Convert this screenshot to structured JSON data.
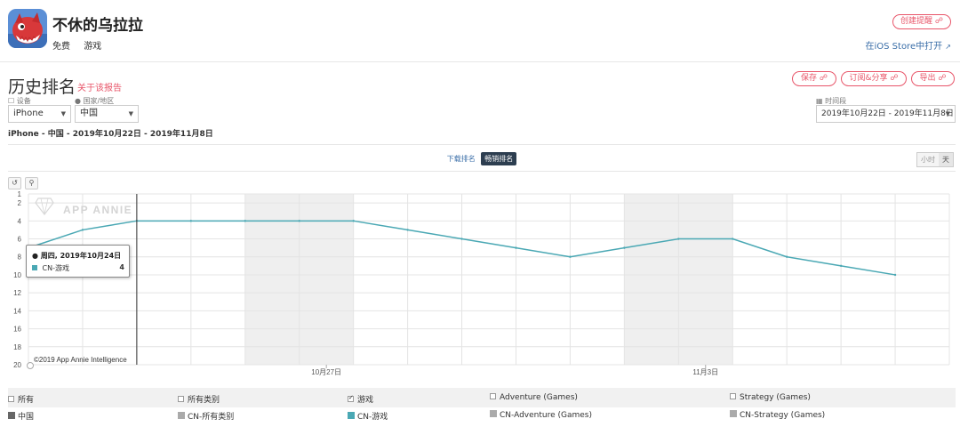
{
  "app": {
    "name": "不休的乌拉拉",
    "price": "免费",
    "category": "游戏",
    "create_alert_label": "创建提醒",
    "ios_store_link": "在iOS Store中打开"
  },
  "report": {
    "title": "历史排名",
    "about_link": "关于该报告",
    "save_label": "保存",
    "subscribe_share_label": "订阅&分享",
    "export_label": "导出"
  },
  "filters": {
    "device_label": "设备",
    "device_value": "iPhone",
    "country_label": "国家/地区",
    "country_value": "中国",
    "time_label": "时间段",
    "time_value": "2019年10月22日 - 2019年11月8日",
    "summary": "iPhone - 中国 - 2019年10月22日 - 2019年11月8日"
  },
  "rank_toggle": {
    "download_label": "下载排名",
    "grossing_label": "畅销排名",
    "active": "grossing"
  },
  "unit_toggle": {
    "hour_label": "小时",
    "day_label": "天"
  },
  "chart_data": {
    "type": "line",
    "title": "",
    "xlabel": "",
    "ylabel": "",
    "x": [
      "2019-10-22",
      "2019-10-23",
      "2019-10-24",
      "2019-10-25",
      "2019-10-26",
      "2019-10-27",
      "2019-10-28",
      "2019-10-29",
      "2019-10-30",
      "2019-10-31",
      "2019-11-01",
      "2019-11-02",
      "2019-11-03",
      "2019-11-04",
      "2019-11-05",
      "2019-11-06",
      "2019-11-07",
      "2019-11-08"
    ],
    "x_tick_labels": [
      {
        "x": "2019-10-27",
        "label": "10月27日"
      },
      {
        "x": "2019-11-03",
        "label": "11月3日"
      }
    ],
    "series": [
      {
        "name": "CN-游戏",
        "color": "#4aa8b4",
        "values": [
          7,
          5,
          4,
          4,
          4,
          4,
          4,
          5,
          6,
          7,
          8,
          7,
          6,
          6,
          8,
          9,
          10,
          null
        ]
      }
    ],
    "y_ticks": [
      1,
      2,
      4,
      6,
      8,
      10,
      12,
      14,
      16,
      18,
      20
    ],
    "ylim": [
      20,
      1
    ],
    "y_inverted": true,
    "grid": true,
    "weekend_bands": [
      [
        "2019-10-26",
        "2019-10-27"
      ],
      [
        "2019-11-02",
        "2019-11-03"
      ]
    ],
    "hover": {
      "x": "2019-10-24",
      "date_label": "周四, 2019年10月24日",
      "series_name": "CN-游戏",
      "value": "4"
    },
    "watermark": "APP ANNIE",
    "copyright": "©2019 App Annie Intelligence"
  },
  "legend": {
    "rows": [
      [
        {
          "label": "所有",
          "checked": false
        },
        {
          "label": "所有类别",
          "checked": false
        },
        {
          "label": "游戏",
          "checked": true
        },
        {
          "label": "Adventure (Games)",
          "checked": false
        },
        {
          "label": "Strategy (Games)",
          "checked": false
        }
      ],
      [
        {
          "label": "中国",
          "swatch": "#666666"
        },
        {
          "label": "CN-所有类别",
          "swatch": "#aaaaaa"
        },
        {
          "label": "CN-游戏",
          "swatch": "#4aa8b4"
        },
        {
          "label": "CN-Adventure (Games)",
          "swatch": "#aaaaaa"
        },
        {
          "label": "CN-Strategy (Games)",
          "swatch": "#aaaaaa"
        }
      ]
    ]
  }
}
